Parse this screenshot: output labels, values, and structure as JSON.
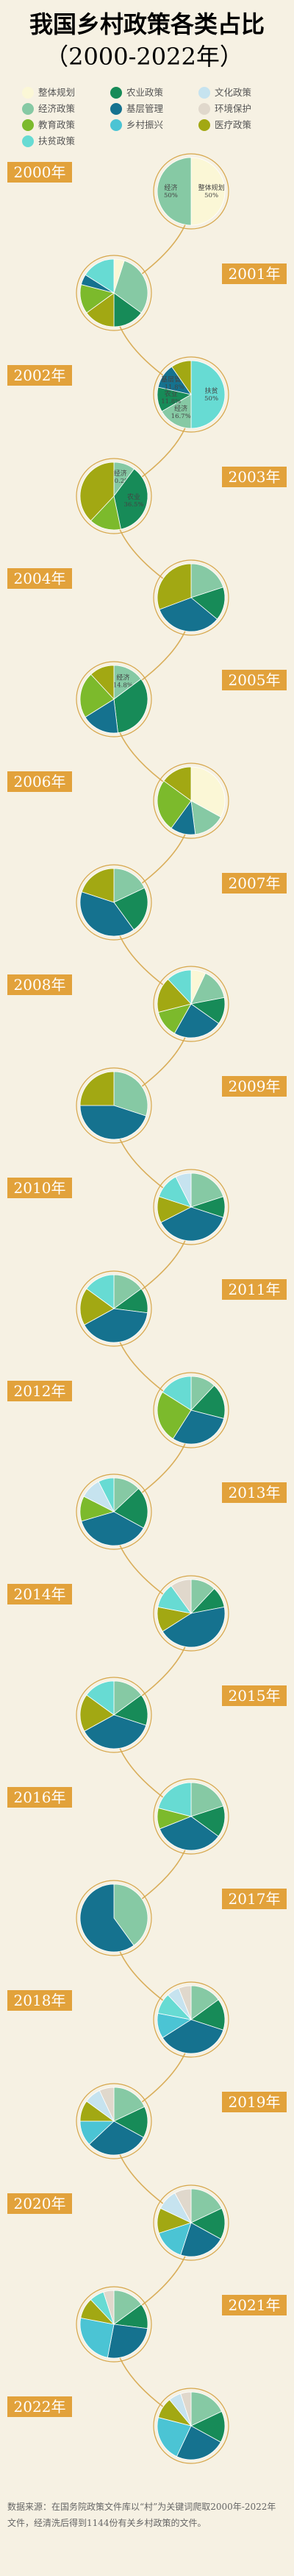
{
  "title": "我国乡村政策各类占比",
  "subtitle": "（2000-2022年）",
  "source_note": "数据来源：在国务院政策文件库以“村”为关键词爬取2000年-2022年文件，经清洗后得到1144份有关乡村政策的文件。",
  "colors": {
    "整体规划": "#fbf7d6",
    "经济政策": "#86c9a4",
    "教育政策": "#7cba2c",
    "医疗政策": "#a2a813",
    "农业政策": "#178b58",
    "基层管理": "#15728f",
    "乡村振兴": "#4bc4d4",
    "扶贫政策": "#67dbd3",
    "文化政策": "#c6e3ef",
    "环境保护": "#e0d8cc",
    "year_badge": "#e2a23b",
    "background": "#f6f1e3"
  },
  "chart_data": {
    "type": "pie",
    "title": "我国乡村政策各类占比",
    "subtitle": "（2000-2022年）",
    "legend": [
      "整体规划",
      "农业政策",
      "文化政策",
      "经济政策",
      "基层管理",
      "环境保护",
      "教育政策",
      "乡村振兴",
      "医疗政策",
      "扶贫政策"
    ],
    "legend_placement": "top",
    "charts": [
      {
        "year": "2000年",
        "slices": [
          [
            "整体规划",
            50,
            "整体规划",
            "50%"
          ],
          [
            "经济政策",
            50,
            "经济",
            "50%"
          ]
        ]
      },
      {
        "year": "2001年",
        "slices": [
          [
            "整体规划",
            5,
            "",
            ""
          ],
          [
            "经济政策",
            30,
            "",
            ""
          ],
          [
            "农业政策",
            15,
            "",
            ""
          ],
          [
            "医疗政策",
            15,
            "",
            ""
          ],
          [
            "教育政策",
            14,
            "",
            ""
          ],
          [
            "基层管理",
            5,
            "",
            ""
          ],
          [
            "扶贫政策",
            16,
            "",
            ""
          ]
        ]
      },
      {
        "year": "2002年",
        "slices": [
          [
            "扶贫政策",
            50,
            "扶贫",
            "50%"
          ],
          [
            "经济政策",
            16.7,
            "经济",
            "16.7%"
          ],
          [
            "农业政策",
            11.8,
            "农业",
            "11.8%"
          ],
          [
            "基层管理",
            11.8,
            "基层管理",
            "11.8%"
          ],
          [
            "医疗政策",
            9.7,
            "",
            ""
          ]
        ]
      },
      {
        "year": "2003年",
        "slices": [
          [
            "经济政策",
            10.2,
            "经济",
            "10.2%"
          ],
          [
            "农业政策",
            36.5,
            "农业",
            "36.5%"
          ],
          [
            "教育政策",
            15.3,
            "",
            ""
          ],
          [
            "医疗政策",
            38,
            "",
            ""
          ]
        ]
      },
      {
        "year": "2004年",
        "slices": [
          [
            "经济政策",
            20,
            "",
            ""
          ],
          [
            "农业政策",
            16,
            "",
            ""
          ],
          [
            "基层管理",
            33.3,
            "",
            ""
          ],
          [
            "医疗政策",
            30.7,
            "",
            ""
          ]
        ]
      },
      {
        "year": "2005年",
        "slices": [
          [
            "经济政策",
            14.8,
            "经济",
            "14.8%"
          ],
          [
            "农业政策",
            33.3,
            "",
            ""
          ],
          [
            "基层管理",
            18,
            "",
            ""
          ],
          [
            "教育政策",
            22,
            "",
            ""
          ],
          [
            "医疗政策",
            11.9,
            "",
            ""
          ]
        ]
      },
      {
        "year": "2006年",
        "slices": [
          [
            "整体规划",
            33,
            "",
            ""
          ],
          [
            "经济政策",
            15,
            "",
            ""
          ],
          [
            "基层管理",
            12,
            "",
            ""
          ],
          [
            "教育政策",
            25,
            "",
            ""
          ],
          [
            "医疗政策",
            15,
            "",
            ""
          ]
        ]
      },
      {
        "year": "2007年",
        "slices": [
          [
            "经济政策",
            18,
            "",
            ""
          ],
          [
            "农业政策",
            22,
            "",
            ""
          ],
          [
            "基层管理",
            40,
            "",
            ""
          ],
          [
            "医疗政策",
            20,
            "",
            ""
          ]
        ]
      },
      {
        "year": "2008年",
        "slices": [
          [
            "整体规划",
            7,
            "",
            ""
          ],
          [
            "经济政策",
            15,
            "",
            ""
          ],
          [
            "农业政策",
            12.8,
            "",
            ""
          ],
          [
            "基层管理",
            23.4,
            "",
            ""
          ],
          [
            "教育政策",
            12.8,
            "",
            ""
          ],
          [
            "医疗政策",
            17,
            "",
            ""
          ],
          [
            "扶贫政策",
            12,
            "",
            ""
          ]
        ]
      },
      {
        "year": "2009年",
        "slices": [
          [
            "经济政策",
            30,
            "",
            ""
          ],
          [
            "基层管理",
            45,
            "",
            ""
          ],
          [
            "医疗政策",
            25,
            "",
            ""
          ]
        ]
      },
      {
        "year": "2010年",
        "slices": [
          [
            "经济政策",
            20,
            "",
            ""
          ],
          [
            "农业政策",
            10,
            "",
            ""
          ],
          [
            "基层管理",
            37.5,
            "",
            ""
          ],
          [
            "医疗政策",
            12.5,
            "",
            ""
          ],
          [
            "扶贫政策",
            12.5,
            "",
            ""
          ],
          [
            "文化政策",
            7.5,
            "",
            ""
          ]
        ]
      },
      {
        "year": "2011年",
        "slices": [
          [
            "经济政策",
            15,
            "",
            ""
          ],
          [
            "农业政策",
            12,
            "",
            ""
          ],
          [
            "基层管理",
            40,
            "",
            ""
          ],
          [
            "医疗政策",
            18,
            "",
            ""
          ],
          [
            "扶贫政策",
            15,
            "",
            ""
          ]
        ]
      },
      {
        "year": "2012年",
        "slices": [
          [
            "经济政策",
            12,
            "",
            ""
          ],
          [
            "农业政策",
            17,
            "",
            ""
          ],
          [
            "基层管理",
            30,
            "",
            ""
          ],
          [
            "教育政策",
            25,
            "",
            ""
          ],
          [
            "扶贫政策",
            16,
            "",
            ""
          ]
        ]
      },
      {
        "year": "2013年",
        "slices": [
          [
            "经济政策",
            13,
            "",
            ""
          ],
          [
            "农业政策",
            20,
            "",
            ""
          ],
          [
            "基层管理",
            37.5,
            "",
            ""
          ],
          [
            "教育政策",
            12,
            "",
            ""
          ],
          [
            "文化政策",
            10,
            "",
            ""
          ],
          [
            "扶贫政策",
            7.5,
            "",
            ""
          ]
        ]
      },
      {
        "year": "2014年",
        "slices": [
          [
            "经济政策",
            12,
            "",
            ""
          ],
          [
            "农业政策",
            10,
            "",
            ""
          ],
          [
            "基层管理",
            44,
            "",
            ""
          ],
          [
            "医疗政策",
            12,
            "",
            ""
          ],
          [
            "扶贫政策",
            12,
            "",
            ""
          ],
          [
            "环境保护",
            10,
            "",
            ""
          ]
        ]
      },
      {
        "year": "2015年",
        "slices": [
          [
            "经济政策",
            15,
            "",
            ""
          ],
          [
            "农业政策",
            15,
            "",
            ""
          ],
          [
            "基层管理",
            37,
            "",
            ""
          ],
          [
            "医疗政策",
            18,
            "",
            ""
          ],
          [
            "扶贫政策",
            15,
            "",
            ""
          ]
        ]
      },
      {
        "year": "2016年",
        "slices": [
          [
            "经济政策",
            20,
            "",
            ""
          ],
          [
            "农业政策",
            15,
            "",
            ""
          ],
          [
            "基层管理",
            34,
            "",
            ""
          ],
          [
            "教育政策",
            10,
            "",
            ""
          ],
          [
            "扶贫政策",
            21,
            "",
            ""
          ]
        ]
      },
      {
        "year": "2017年",
        "slices": [
          [
            "经济政策",
            40,
            "",
            ""
          ],
          [
            "基层管理",
            60,
            "",
            ""
          ]
        ]
      },
      {
        "year": "2018年",
        "slices": [
          [
            "经济政策",
            15,
            "",
            ""
          ],
          [
            "农业政策",
            15,
            "",
            ""
          ],
          [
            "基层管理",
            36,
            "",
            ""
          ],
          [
            "乡村振兴",
            12,
            "",
            ""
          ],
          [
            "扶贫政策",
            10,
            "",
            ""
          ],
          [
            "文化政策",
            6,
            "",
            ""
          ],
          [
            "环境保护",
            6,
            "",
            ""
          ]
        ]
      },
      {
        "year": "2019年",
        "slices": [
          [
            "经济政策",
            18,
            "",
            ""
          ],
          [
            "农业政策",
            15,
            "",
            ""
          ],
          [
            "基层管理",
            30,
            "",
            ""
          ],
          [
            "乡村振兴",
            12,
            "",
            ""
          ],
          [
            "医疗政策",
            10,
            "",
            ""
          ],
          [
            "文化政策",
            8,
            "",
            ""
          ],
          [
            "环境保护",
            7,
            "",
            ""
          ]
        ]
      },
      {
        "year": "2020年",
        "slices": [
          [
            "经济政策",
            18,
            "",
            ""
          ],
          [
            "农业政策",
            15,
            "",
            ""
          ],
          [
            "基层管理",
            22,
            "",
            ""
          ],
          [
            "乡村振兴",
            15,
            "",
            ""
          ],
          [
            "医疗政策",
            12,
            "",
            ""
          ],
          [
            "文化政策",
            10,
            "",
            ""
          ],
          [
            "环境保护",
            8,
            "",
            ""
          ]
        ]
      },
      {
        "year": "2021年",
        "slices": [
          [
            "经济政策",
            15,
            "",
            ""
          ],
          [
            "农业政策",
            12,
            "",
            ""
          ],
          [
            "基层管理",
            26,
            "",
            ""
          ],
          [
            "乡村振兴",
            25,
            "",
            ""
          ],
          [
            "医疗政策",
            10,
            "",
            ""
          ],
          [
            "扶贫政策",
            7,
            "",
            ""
          ],
          [
            "环境保护",
            5,
            "",
            ""
          ]
        ]
      },
      {
        "year": "2022年",
        "slices": [
          [
            "经济政策",
            18,
            "",
            ""
          ],
          [
            "农业政策",
            15,
            "",
            ""
          ],
          [
            "基层管理",
            24,
            "",
            ""
          ],
          [
            "乡村振兴",
            22,
            "",
            ""
          ],
          [
            "医疗政策",
            10,
            "",
            ""
          ],
          [
            "文化政策",
            6,
            "",
            ""
          ],
          [
            "环境保护",
            5,
            "",
            ""
          ]
        ]
      }
    ]
  }
}
